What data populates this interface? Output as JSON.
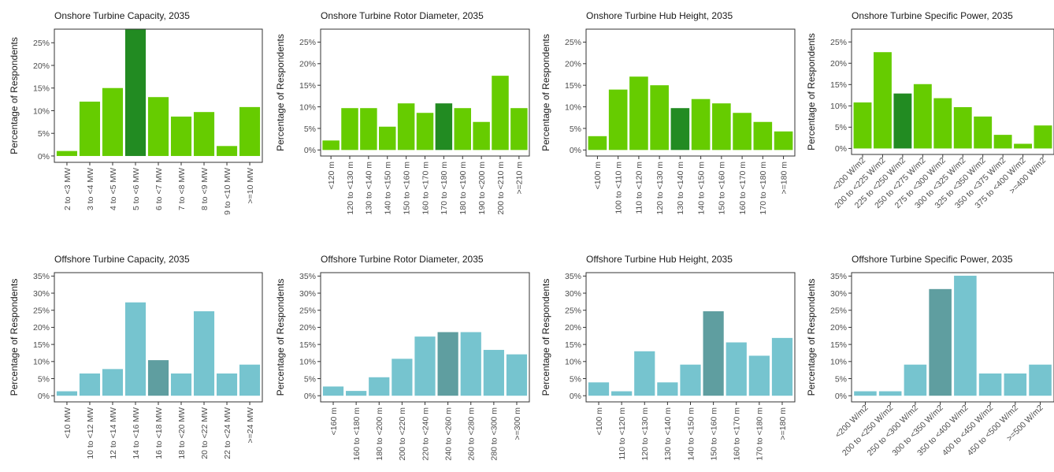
{
  "colors": {
    "onshore": "#66cc00",
    "onshore_highlight": "#228b22",
    "offshore": "#76c4cf",
    "offshore_highlight": "#5f9ea0"
  },
  "chart_data": [
    {
      "type": "bar",
      "title": "Onshore Turbine Capacity, 2035",
      "ylabel": "Percentage of Respondents",
      "ylim": [
        0,
        28
      ],
      "yticks": [
        "0%",
        "5%",
        "10%",
        "15%",
        "20%",
        "25%"
      ],
      "categories": [
        "2 to <3 MW",
        "3 to <4 MW",
        "4 to <5 MW",
        "5 to <6 MW",
        "6 to <7 MW",
        "7 to <8 MW",
        "8 to <9 MW",
        "9 to <10 MW",
        ">=10 MW"
      ],
      "values": [
        1.1,
        12,
        15,
        28.1,
        13,
        8.7,
        9.7,
        2.2,
        10.8
      ],
      "highlight": 3,
      "group": "onshore",
      "rotate_labels": 90
    },
    {
      "type": "bar",
      "title": "Onshore Turbine Rotor Diameter, 2035",
      "ylabel": "Percentage of Respondents",
      "ylim": [
        0,
        28
      ],
      "yticks": [
        "0%",
        "5%",
        "10%",
        "15%",
        "20%",
        "25%"
      ],
      "categories": [
        "<120 m",
        "120 to <130 m",
        "130 to <140 m",
        "140 to <150 m",
        "150 to <160 m",
        "160 to <170 m",
        "170 to <180 m",
        "180 to <190 m",
        "190 to <200 m",
        "200 to <210 m",
        ">=210 m"
      ],
      "values": [
        2.2,
        9.7,
        9.7,
        5.4,
        10.8,
        8.6,
        10.8,
        9.7,
        6.5,
        17.2,
        9.7
      ],
      "highlight": 6,
      "group": "onshore",
      "rotate_labels": 90
    },
    {
      "type": "bar",
      "title": "Onshore Turbine Hub Height, 2035",
      "ylabel": "Percentage of Respondents",
      "ylim": [
        0,
        28
      ],
      "yticks": [
        "0%",
        "5%",
        "10%",
        "15%",
        "20%",
        "25%"
      ],
      "categories": [
        "<100 m",
        "100 to <110 m",
        "110 to <120 m",
        "120 to <130 m",
        "130 to <140 m",
        "140 to <150 m",
        "150 to <160 m",
        "160 to <170 m",
        "170 to <180 m",
        ">=180 m"
      ],
      "values": [
        3.2,
        14,
        17,
        15,
        9.7,
        11.8,
        10.8,
        8.6,
        6.5,
        4.3
      ],
      "highlight": 4,
      "group": "onshore",
      "rotate_labels": 90
    },
    {
      "type": "bar",
      "title": "Onshore Turbine Specific Power, 2035",
      "ylabel": "Percentage of Respondents",
      "ylim": [
        0,
        28
      ],
      "yticks": [
        "0%",
        "5%",
        "10%",
        "15%",
        "20%",
        "25%"
      ],
      "categories": [
        "<200 W/m2",
        "200 to <225 W/m2",
        "225 to <250 W/m2",
        "250 to <275 W/m2",
        "275 to <300 W/m2",
        "300 to <325 W/m2",
        "325 to <350 W/m2",
        "350 to <375 W/m2",
        "375 to <400 W/m2",
        ">=400 W/m2"
      ],
      "values": [
        10.8,
        22.6,
        12.9,
        15.1,
        11.8,
        9.7,
        7.5,
        3.2,
        1.1,
        5.4
      ],
      "highlight": 2,
      "group": "onshore",
      "rotate_labels": 45
    },
    {
      "type": "bar",
      "title": "Offshore Turbine Capacity, 2035",
      "ylabel": "Percentage of Respondents",
      "ylim": [
        0,
        36
      ],
      "yticks": [
        "0%",
        "5%",
        "10%",
        "15%",
        "20%",
        "25%",
        "30%",
        "35%"
      ],
      "categories": [
        "<10 MW",
        "10 to <12 MW",
        "12 to <14 MW",
        "14 to <16 MW",
        "16 to <18 MW",
        "18 to <20 MW",
        "20 to <22 MW",
        "22 to <24 MW",
        ">=24 MW"
      ],
      "values": [
        1.3,
        6.5,
        7.8,
        27.3,
        10.4,
        6.5,
        24.7,
        6.5,
        9.1
      ],
      "highlight": 4,
      "group": "offshore",
      "rotate_labels": 90
    },
    {
      "type": "bar",
      "title": "Offshore Turbine Rotor Diameter, 2035",
      "ylabel": "Percentage of Respondents",
      "ylim": [
        0,
        36
      ],
      "yticks": [
        "0%",
        "5%",
        "10%",
        "15%",
        "20%",
        "25%",
        "30%",
        "35%"
      ],
      "categories": [
        "<160 m",
        "160 to <180 m",
        "180 to <200 m",
        "200 to <220 m",
        "220 to <240 m",
        "240 to <260 m",
        "260 to <280 m",
        "280 to <300 m",
        ">=300 m"
      ],
      "values": [
        2.7,
        1.4,
        5.4,
        10.8,
        17.3,
        18.6,
        18.6,
        13.4,
        12.1
      ],
      "highlight": 5,
      "group": "offshore",
      "rotate_labels": 90
    },
    {
      "type": "bar",
      "title": "Offshore Turbine Hub Height, 2035",
      "ylabel": "Percentage of Respondents",
      "ylim": [
        0,
        36
      ],
      "yticks": [
        "0%",
        "5%",
        "10%",
        "15%",
        "20%",
        "25%",
        "30%",
        "35%"
      ],
      "categories": [
        "<100 m",
        "110 to <120 m",
        "120 to <130 m",
        "130 to <140 m",
        "140 to <150 m",
        "150 to <160 m",
        "160 to <170 m",
        "170 to <180 m",
        ">=180 m"
      ],
      "values": [
        3.9,
        1.3,
        13,
        3.9,
        9.1,
        24.7,
        15.6,
        11.7,
        16.9
      ],
      "highlight": 5,
      "group": "offshore",
      "rotate_labels": 90
    },
    {
      "type": "bar",
      "title": "Offshore Turbine Specific Power, 2035",
      "ylabel": "Percentage of Respondents",
      "ylim": [
        0,
        36
      ],
      "yticks": [
        "0%",
        "5%",
        "10%",
        "15%",
        "20%",
        "25%",
        "30%",
        "35%"
      ],
      "categories": [
        "<200 W/m2",
        "200 to <250 W/m2",
        "250 to <300 W/m2",
        "300 to <350 W/m2",
        "350 to <400 W/m2",
        "400 to <450 W/m2",
        "450 to <500 W/m2",
        ">=500 W/m2"
      ],
      "values": [
        1.3,
        1.3,
        9.1,
        31.2,
        35.1,
        6.5,
        6.5,
        9.1
      ],
      "highlight": 3,
      "group": "offshore",
      "rotate_labels": 45
    }
  ]
}
